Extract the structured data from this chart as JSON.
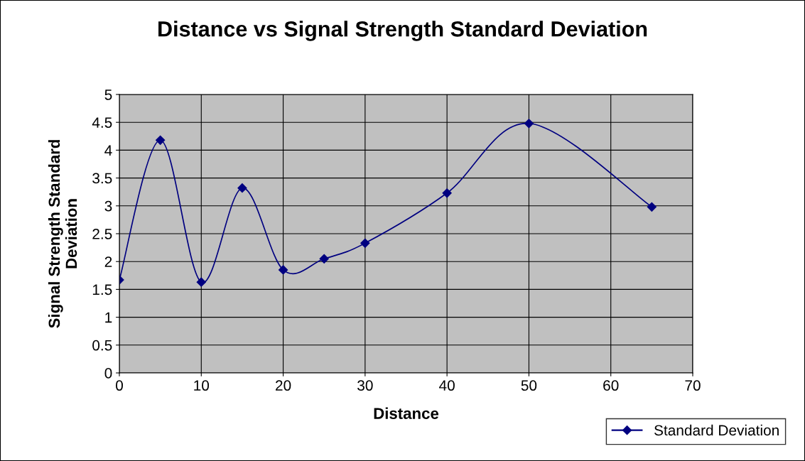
{
  "chart_data": {
    "type": "line",
    "title": "Distance vs Signal Strength Standard Deviation",
    "xlabel": "Distance",
    "ylabel": "Signal Strength Standard Deviation",
    "x": [
      0,
      5,
      10,
      15,
      20,
      25,
      30,
      40,
      50,
      65
    ],
    "series": [
      {
        "name": "Standard Deviation",
        "color": "#000080",
        "values": [
          1.67,
          4.18,
          1.63,
          3.32,
          1.85,
          2.05,
          2.33,
          3.23,
          4.48,
          2.98
        ]
      }
    ],
    "xlim": [
      0,
      70
    ],
    "xticks": [
      0,
      10,
      20,
      30,
      40,
      50,
      60,
      70
    ],
    "ylim": [
      0,
      5
    ],
    "yticks": [
      0,
      0.5,
      1,
      1.5,
      2,
      2.5,
      3,
      3.5,
      4,
      4.5,
      5
    ],
    "grid": true,
    "legend": "bottom right",
    "marker": "diamond",
    "line_style": "solid"
  }
}
